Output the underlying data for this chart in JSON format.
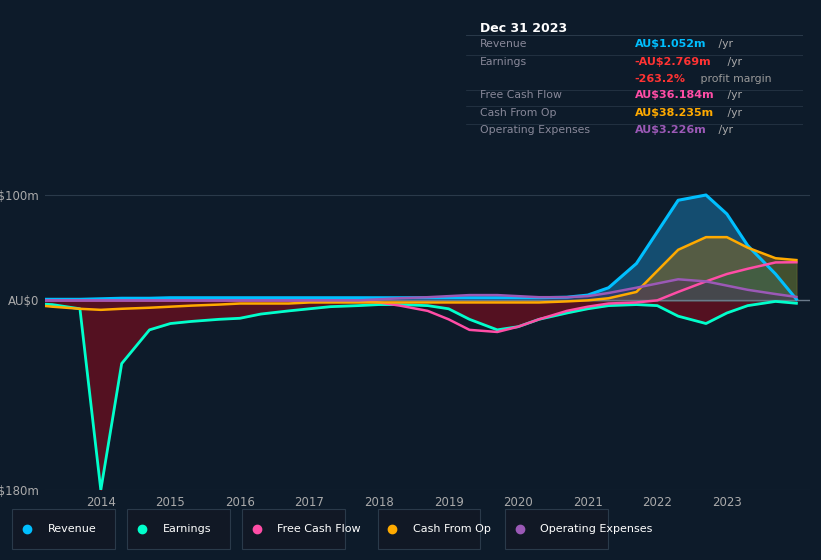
{
  "bg_color": "#0d1b2a",
  "plot_bg_color": "#0d1b2a",
  "title": "Dec 31 2023",
  "years": [
    2013.0,
    2013.3,
    2013.7,
    2014.0,
    2014.3,
    2014.7,
    2015.0,
    2015.3,
    2015.7,
    2016.0,
    2016.3,
    2016.7,
    2017.0,
    2017.3,
    2017.7,
    2018.0,
    2018.3,
    2018.7,
    2019.0,
    2019.3,
    2019.7,
    2020.0,
    2020.3,
    2020.7,
    2021.0,
    2021.3,
    2021.7,
    2022.0,
    2022.3,
    2022.7,
    2023.0,
    2023.3,
    2023.7,
    2024.0
  ],
  "revenue": [
    1,
    1,
    1,
    1.5,
    2,
    2,
    2.5,
    2.5,
    2.5,
    2.5,
    2.5,
    2.5,
    2.5,
    2.5,
    2.5,
    2.5,
    2.5,
    2.5,
    2.5,
    2.5,
    2.5,
    2.5,
    2.5,
    3,
    5,
    12,
    35,
    65,
    95,
    100,
    82,
    52,
    25,
    1.052
  ],
  "earnings": [
    -3,
    -4,
    -8,
    -180,
    -60,
    -28,
    -22,
    -20,
    -18,
    -17,
    -13,
    -10,
    -8,
    -6,
    -5,
    -4,
    -4,
    -5,
    -8,
    -18,
    -28,
    -25,
    -18,
    -12,
    -8,
    -5,
    -4,
    -5,
    -15,
    -22,
    -12,
    -5,
    -1,
    -2.769
  ],
  "free_cash_flow": [
    0,
    0,
    0,
    0,
    0,
    0,
    0,
    0,
    0,
    0,
    0,
    0,
    0,
    0,
    0,
    -2,
    -5,
    -10,
    -18,
    -28,
    -30,
    -25,
    -18,
    -10,
    -6,
    -3,
    -2,
    0,
    8,
    18,
    25,
    30,
    36,
    36.184
  ],
  "cash_from_op": [
    -4,
    -6,
    -8,
    -9,
    -8,
    -7,
    -6,
    -5,
    -4,
    -3,
    -3,
    -3,
    -2,
    -2,
    -2,
    -2,
    -2,
    -2,
    -2,
    -2,
    -2,
    -2,
    -2,
    -1,
    0,
    2,
    8,
    28,
    48,
    60,
    60,
    50,
    40,
    38.235
  ],
  "operating_expenses": [
    0,
    0,
    0,
    0,
    0,
    0,
    0,
    0,
    0,
    0,
    0,
    0,
    0,
    0,
    0,
    1,
    2,
    3,
    4,
    5,
    5,
    4,
    3,
    3,
    4,
    7,
    12,
    16,
    20,
    18,
    14,
    10,
    6,
    3.226
  ],
  "revenue_color": "#00bfff",
  "earnings_color": "#00ffcc",
  "fcf_color": "#ff4da6",
  "cfop_color": "#ffaa00",
  "opex_color": "#9b59b6",
  "revenue_fill_color": "#1a6fa0",
  "earnings_fill_color": "#5c1020",
  "cfop_fill_color": "#8b6a20",
  "ylim": [
    -180,
    115
  ],
  "xlim": [
    2013.2,
    2024.2
  ],
  "yticks": [
    -180,
    0,
    100
  ],
  "ytick_labels": [
    "-AU$180m",
    "AU$0",
    "AU$100m"
  ],
  "xticks": [
    2014,
    2015,
    2016,
    2017,
    2018,
    2019,
    2020,
    2021,
    2022,
    2023
  ],
  "legend": [
    {
      "label": "Revenue",
      "color": "#00bfff"
    },
    {
      "label": "Earnings",
      "color": "#00ffcc"
    },
    {
      "label": "Free Cash Flow",
      "color": "#ff4da6"
    },
    {
      "label": "Cash From Op",
      "color": "#ffaa00"
    },
    {
      "label": "Operating Expenses",
      "color": "#9b59b6"
    }
  ]
}
